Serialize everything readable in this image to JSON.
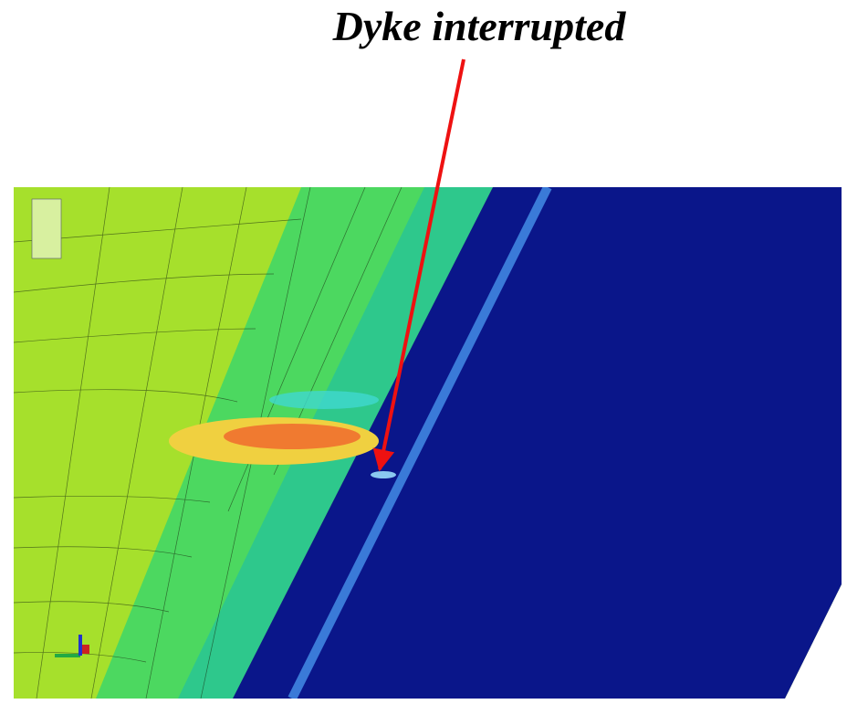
{
  "annotation": "Dyke interrupted"
}
